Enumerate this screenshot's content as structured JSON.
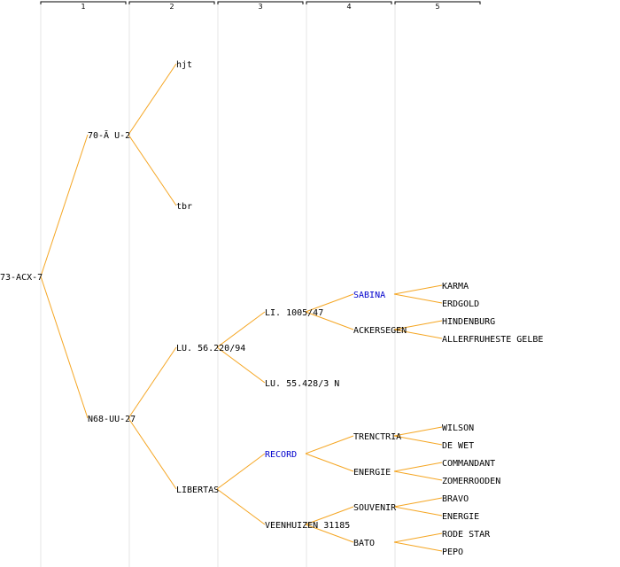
{
  "colors": {
    "edge": "#f5a623",
    "text": "#000000",
    "highlight": "#0000cc",
    "column_rule": "#e6e6e6",
    "header_bracket": "#000000"
  },
  "generations": [
    "1",
    "2",
    "3",
    "4",
    "5"
  ],
  "nodes": [
    {
      "id": "n0",
      "gen": 0,
      "row": 15.5,
      "label": "73-ACX-7",
      "highlight": false
    },
    {
      "id": "n1",
      "gen": 1,
      "row": 7.5,
      "label": "70-Ă U-2",
      "highlight": false
    },
    {
      "id": "n2",
      "gen": 1,
      "row": 23.5,
      "label": "N68-UU-27",
      "highlight": false
    },
    {
      "id": "n3",
      "gen": 2,
      "row": 3.5,
      "label": "hjt",
      "highlight": false
    },
    {
      "id": "n4",
      "gen": 2,
      "row": 11.5,
      "label": "tbr",
      "highlight": false
    },
    {
      "id": "n5",
      "gen": 2,
      "row": 19.5,
      "label": "LU. 56.220/94",
      "highlight": false
    },
    {
      "id": "n6",
      "gen": 2,
      "row": 27.5,
      "label": "LIBERTAS",
      "highlight": false
    },
    {
      "id": "n7",
      "gen": 3,
      "row": 17.5,
      "label": "LI. 1005/47",
      "highlight": false
    },
    {
      "id": "n8",
      "gen": 3,
      "row": 21.5,
      "label": "LU. 55.428/3 N",
      "highlight": false
    },
    {
      "id": "n9",
      "gen": 3,
      "row": 25.5,
      "label": "RECORD",
      "highlight": true
    },
    {
      "id": "n10",
      "gen": 3,
      "row": 29.5,
      "label": "VEENHUIZEN 31185",
      "highlight": false
    },
    {
      "id": "n11",
      "gen": 4,
      "row": 16.5,
      "label": "SABINA",
      "highlight": true
    },
    {
      "id": "n12",
      "gen": 4,
      "row": 18.5,
      "label": "ACKERSEGEN",
      "highlight": false
    },
    {
      "id": "n13",
      "gen": 4,
      "row": 24.5,
      "label": "TRENCTRIA",
      "highlight": false
    },
    {
      "id": "n14",
      "gen": 4,
      "row": 26.5,
      "label": "ENERGIE",
      "highlight": false
    },
    {
      "id": "n15",
      "gen": 4,
      "row": 28.5,
      "label": "SOUVENIR",
      "highlight": false
    },
    {
      "id": "n16",
      "gen": 4,
      "row": 30.5,
      "label": "BATO",
      "highlight": false
    },
    {
      "id": "n17",
      "gen": 5,
      "row": 16,
      "label": "KARMA",
      "highlight": false
    },
    {
      "id": "n18",
      "gen": 5,
      "row": 17,
      "label": "ERDGOLD",
      "highlight": false
    },
    {
      "id": "n19",
      "gen": 5,
      "row": 18,
      "label": "HINDENBURG",
      "highlight": false
    },
    {
      "id": "n20",
      "gen": 5,
      "row": 19,
      "label": "ALLERFRUHESTE GELBE",
      "highlight": false
    },
    {
      "id": "n21",
      "gen": 5,
      "row": 24,
      "label": "WILSON",
      "highlight": false
    },
    {
      "id": "n22",
      "gen": 5,
      "row": 25,
      "label": "DE WET",
      "highlight": false
    },
    {
      "id": "n23",
      "gen": 5,
      "row": 26,
      "label": "COMMANDANT",
      "highlight": false
    },
    {
      "id": "n24",
      "gen": 5,
      "row": 27,
      "label": "ZOMERROODEN",
      "highlight": false
    },
    {
      "id": "n25",
      "gen": 5,
      "row": 28,
      "label": "BRAVO",
      "highlight": false
    },
    {
      "id": "n26",
      "gen": 5,
      "row": 29,
      "label": "ENERGIE",
      "highlight": false
    },
    {
      "id": "n27",
      "gen": 5,
      "row": 30,
      "label": "RODE STAR",
      "highlight": false
    },
    {
      "id": "n28",
      "gen": 5,
      "row": 31,
      "label": "PEPO",
      "highlight": false
    }
  ],
  "edges": [
    [
      "n0",
      "n1"
    ],
    [
      "n0",
      "n2"
    ],
    [
      "n1",
      "n3"
    ],
    [
      "n1",
      "n4"
    ],
    [
      "n2",
      "n5"
    ],
    [
      "n2",
      "n6"
    ],
    [
      "n5",
      "n7"
    ],
    [
      "n5",
      "n8"
    ],
    [
      "n6",
      "n9"
    ],
    [
      "n6",
      "n10"
    ],
    [
      "n7",
      "n11"
    ],
    [
      "n7",
      "n12"
    ],
    [
      "n9",
      "n13"
    ],
    [
      "n9",
      "n14"
    ],
    [
      "n10",
      "n15"
    ],
    [
      "n10",
      "n16"
    ],
    [
      "n11",
      "n17"
    ],
    [
      "n11",
      "n18"
    ],
    [
      "n12",
      "n19"
    ],
    [
      "n12",
      "n20"
    ],
    [
      "n13",
      "n21"
    ],
    [
      "n13",
      "n22"
    ],
    [
      "n14",
      "n23"
    ],
    [
      "n14",
      "n24"
    ],
    [
      "n15",
      "n25"
    ],
    [
      "n15",
      "n26"
    ],
    [
      "n16",
      "n27"
    ],
    [
      "n16",
      "n28"
    ]
  ]
}
